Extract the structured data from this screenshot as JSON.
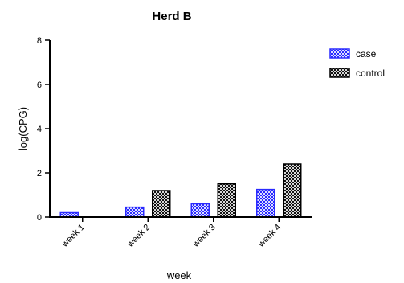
{
  "chart_data": {
    "type": "bar",
    "title": "Herd B",
    "xlabel": "week",
    "ylabel": "log(CPG)",
    "categories": [
      "week 1",
      "week 2",
      "week 3",
      "week 4"
    ],
    "ylim": [
      0,
      8
    ],
    "yticks": [
      0,
      2,
      4,
      6,
      8
    ],
    "grid": false,
    "legend_position": "top-right",
    "series": [
      {
        "name": "case",
        "values": [
          0.2,
          0.45,
          0.6,
          1.25
        ],
        "color": "#2a2aff",
        "pattern": "checker-blue"
      },
      {
        "name": "control",
        "values": [
          0,
          1.2,
          1.5,
          2.4
        ],
        "color": "#000000",
        "pattern": "checker-black"
      }
    ]
  }
}
